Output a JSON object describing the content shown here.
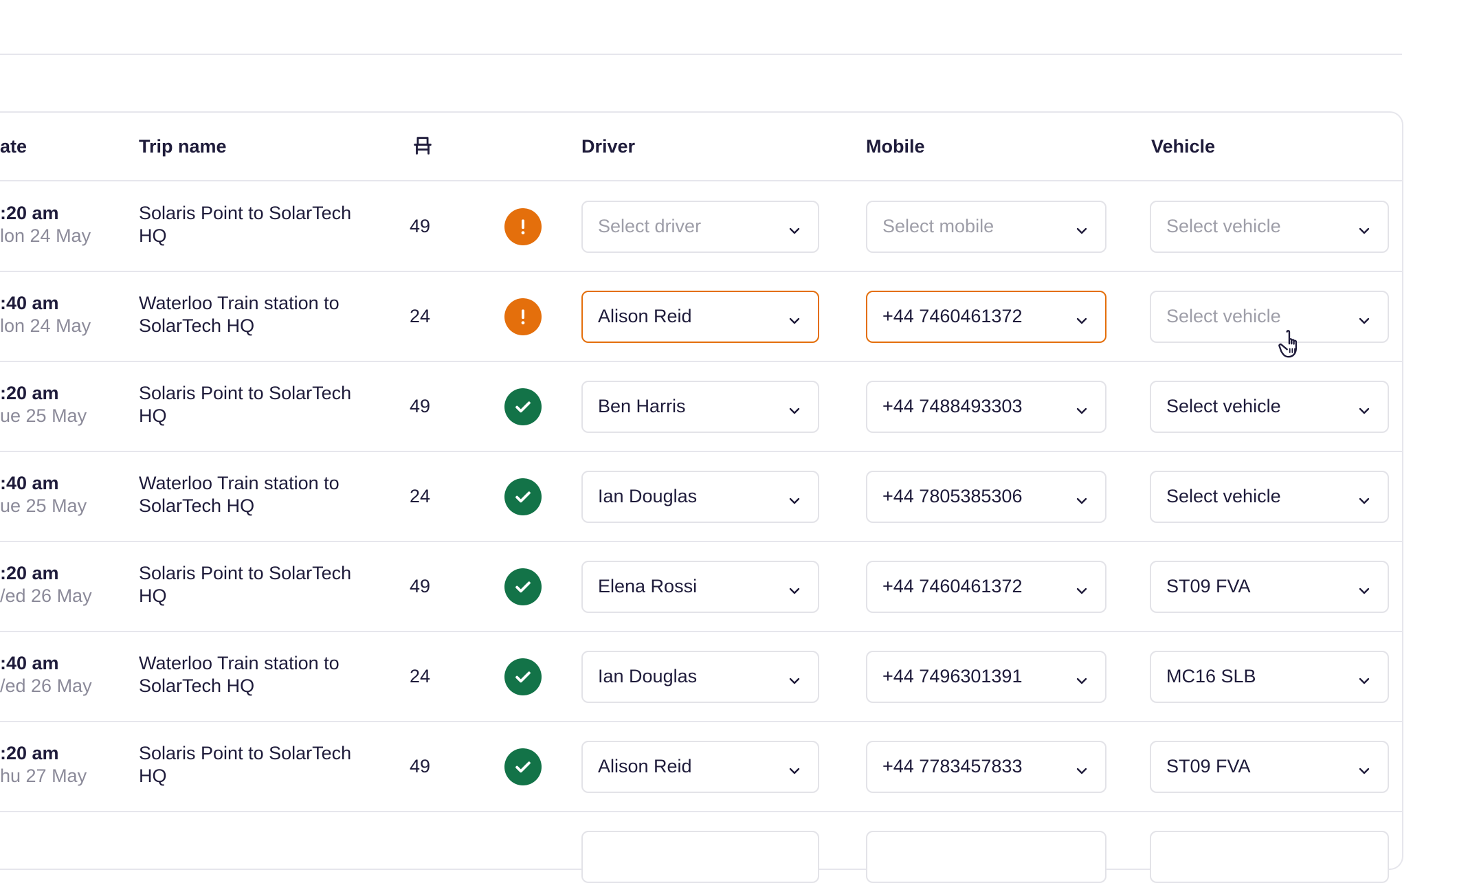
{
  "table": {
    "headers": {
      "date": "ate",
      "trip_name": "Trip name",
      "seats_icon": "seat-icon",
      "driver": "Driver",
      "mobile": "Mobile",
      "vehicle": "Vehicle"
    },
    "rows": [
      {
        "time": ":20 am",
        "date": "lon 24 May",
        "trip": "Solaris Point to SolarTech HQ",
        "seats": "49",
        "status": "warning",
        "driver": "Select driver",
        "mobile": "Select mobile",
        "vehicle": "Select vehicle"
      },
      {
        "time": ":40 am",
        "date": "lon 24 May",
        "trip": "Waterloo Train station to SolarTech HQ",
        "seats": "24",
        "status": "warning",
        "driver": "Alison Reid",
        "mobile": "+44 7460461372",
        "vehicle": "Select vehicle"
      },
      {
        "time": ":20 am",
        "date": "ue 25 May",
        "trip": "Solaris Point to SolarTech HQ",
        "seats": "49",
        "status": "ok",
        "driver": "Ben Harris",
        "mobile": "+44 7488493303",
        "vehicle": "Select vehicle"
      },
      {
        "time": ":40 am",
        "date": "ue 25 May",
        "trip": "Waterloo Train station to SolarTech HQ",
        "seats": "24",
        "status": "ok",
        "driver": "Ian Douglas",
        "mobile": "+44 7805385306",
        "vehicle": "Select vehicle"
      },
      {
        "time": ":20 am",
        "date": "/ed 26 May",
        "trip": "Solaris Point to SolarTech HQ",
        "seats": "49",
        "status": "ok",
        "driver": "Elena Rossi",
        "mobile": "+44 7460461372",
        "vehicle": "ST09 FVA"
      },
      {
        "time": ":40 am",
        "date": "/ed 26 May",
        "trip": "Waterloo Train station to SolarTech HQ",
        "seats": "24",
        "status": "ok",
        "driver": "Ian Douglas",
        "mobile": "+44 7496301391",
        "vehicle": "MC16 SLB"
      },
      {
        "time": ":20 am",
        "date": "hu 27 May",
        "trip": "Solaris Point to SolarTech HQ",
        "seats": "49",
        "status": "ok",
        "driver": "Alison Reid",
        "mobile": "+44 7783457833",
        "vehicle": "ST09 FVA"
      }
    ]
  },
  "colors": {
    "warning": "#e46f0c",
    "ok": "#137348",
    "border": "#e3e3e8",
    "placeholder": "#9e9ea8"
  },
  "icons": {
    "status_warning": "exclamation-icon",
    "status_ok": "check-icon",
    "dropdown": "chevron-down-icon",
    "cursor": "hand-pointer-icon"
  }
}
